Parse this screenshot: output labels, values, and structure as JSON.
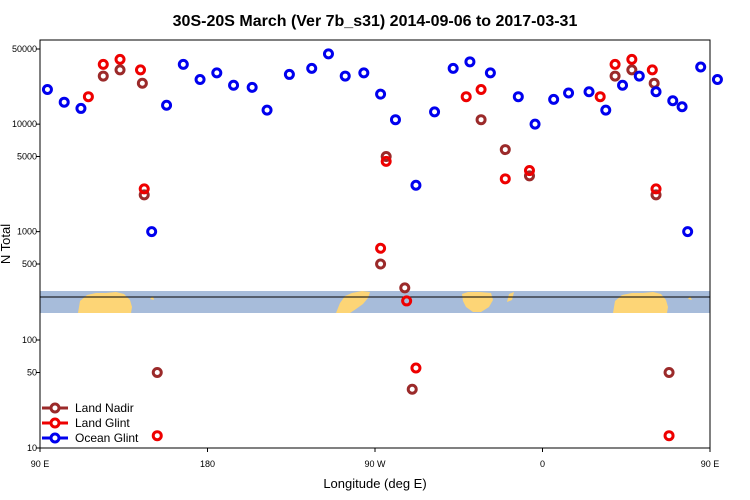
{
  "chart_data": {
    "type": "scatter",
    "title": "30S-20S March (Ver 7b_s31)   2014-09-06 to 2017-03-31",
    "xlabel": "Longitude (deg E)",
    "ylabel": "N Total",
    "x_scale": "linear",
    "y_scale": "log",
    "xlim": [
      90,
      450
    ],
    "ylim": [
      10,
      60000
    ],
    "x_ticks": [
      {
        "value": 90,
        "label": "90 E"
      },
      {
        "value": 180,
        "label": "180"
      },
      {
        "value": 270,
        "label": "90 W"
      },
      {
        "value": 360,
        "label": "0"
      },
      {
        "value": 450,
        "label": "90 E"
      },
      {
        "value": 540,
        "label": "180"
      }
    ],
    "y_ticks_upper": [
      {
        "value": 50000,
        "label": "50000"
      },
      {
        "value": 10000,
        "label": "10000"
      },
      {
        "value": 5000,
        "label": "5000"
      },
      {
        "value": 1000,
        "label": "1000"
      },
      {
        "value": 500,
        "label": "500"
      }
    ],
    "y_ticks_lower": [
      {
        "value": 100,
        "label": "100"
      },
      {
        "value": 50,
        "label": "50"
      },
      {
        "value": 10,
        "label": "10"
      }
    ],
    "legend_position": "bottom-left",
    "background_map": "world land mask (30S-20S band)",
    "series": [
      {
        "name": "Land Nadir",
        "color": "#9b2a2a",
        "points": [
          [
            124,
            28000
          ],
          [
            133,
            32000
          ],
          [
            145,
            24000
          ],
          [
            146,
            2200
          ],
          [
            153,
            50
          ],
          [
            273,
            500
          ],
          [
            276,
            5000
          ],
          [
            286,
            300
          ],
          [
            290,
            35
          ],
          [
            327,
            11000
          ],
          [
            340,
            5800
          ],
          [
            353,
            3300
          ],
          [
            399,
            28000
          ],
          [
            408,
            32000
          ],
          [
            420,
            24000
          ],
          [
            421,
            2200
          ],
          [
            428,
            50
          ]
        ]
      },
      {
        "name": "Land Glint",
        "color": "#ee0000",
        "points": [
          [
            116,
            18000
          ],
          [
            124,
            36000
          ],
          [
            133,
            40000
          ],
          [
            144,
            32000
          ],
          [
            146,
            2500
          ],
          [
            153,
            13
          ],
          [
            273,
            700
          ],
          [
            276,
            4500
          ],
          [
            287,
            230
          ],
          [
            292,
            55
          ],
          [
            319,
            18000
          ],
          [
            327,
            21000
          ],
          [
            340,
            3100
          ],
          [
            353,
            3700
          ],
          [
            391,
            18000
          ],
          [
            399,
            36000
          ],
          [
            408,
            40000
          ],
          [
            419,
            32000
          ],
          [
            421,
            2500
          ],
          [
            428,
            13
          ]
        ]
      },
      {
        "name": "Ocean Glint",
        "color": "#0000ee",
        "points": [
          [
            94,
            21000
          ],
          [
            103,
            16000
          ],
          [
            112,
            14000
          ],
          [
            150,
            1000
          ],
          [
            158,
            15000
          ],
          [
            167,
            36000
          ],
          [
            176,
            26000
          ],
          [
            185,
            30000
          ],
          [
            194,
            23000
          ],
          [
            204,
            22000
          ],
          [
            212,
            13500
          ],
          [
            224,
            29000
          ],
          [
            236,
            33000
          ],
          [
            245,
            45000
          ],
          [
            254,
            28000
          ],
          [
            264,
            30000
          ],
          [
            273,
            19000
          ],
          [
            281,
            11000
          ],
          [
            292,
            2700
          ],
          [
            302,
            13000
          ],
          [
            312,
            33000
          ],
          [
            321,
            38000
          ],
          [
            332,
            30000
          ],
          [
            347,
            18000
          ],
          [
            356,
            10000
          ],
          [
            366,
            17000
          ],
          [
            374,
            19500
          ],
          [
            385,
            20000
          ],
          [
            394,
            13500
          ],
          [
            403,
            23000
          ],
          [
            412,
            28000
          ],
          [
            421,
            20000
          ],
          [
            430,
            16500
          ],
          [
            435,
            14500
          ],
          [
            438,
            1000
          ],
          [
            445,
            34000
          ],
          [
            454,
            26000
          ]
        ]
      }
    ]
  }
}
